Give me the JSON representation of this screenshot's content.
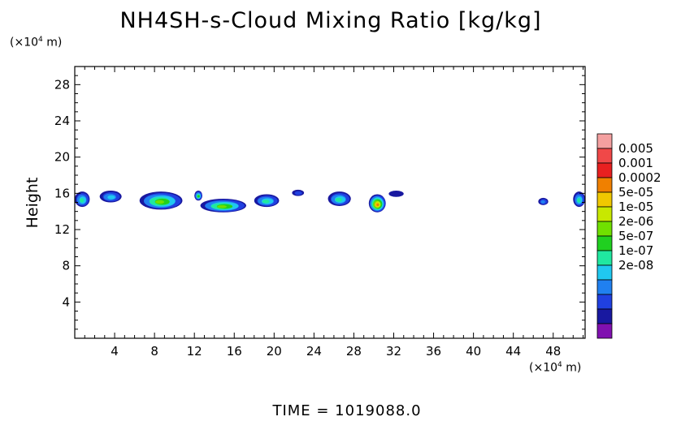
{
  "title": "NH4SH-s-Cloud Mixing Ratio [kg/kg]",
  "y_unit": {
    "prefix": "(×10",
    "exp": "4",
    "suffix": " m)"
  },
  "x_unit": {
    "prefix": "(×10",
    "exp": "4",
    "suffix": " m)"
  },
  "time_label": "TIME  =  1019088.0",
  "chart_data": {
    "type": "heatmap",
    "title": "NH4SH-s-Cloud Mixing Ratio [kg/kg]",
    "xlabel": "",
    "ylabel": "Height",
    "xlim": [
      0,
      51.2
    ],
    "ylim": [
      0,
      30
    ],
    "x_ticks": [
      4,
      8,
      12,
      16,
      20,
      24,
      28,
      32,
      36,
      40,
      44,
      48
    ],
    "y_ticks": [
      4,
      8,
      12,
      16,
      20,
      24,
      28
    ],
    "colorbar": {
      "labels": [
        "0.005",
        "0.001",
        "0.0002",
        "5e-05",
        "1e-05",
        "2e-06",
        "5e-07",
        "1e-07",
        "2e-08"
      ],
      "colors": [
        "#f4a0a0",
        "#f04848",
        "#e82020",
        "#f08000",
        "#f0c800",
        "#c8e800",
        "#70e000",
        "#20d020",
        "#20e8a0",
        "#20c8f0",
        "#2080f0",
        "#2040e0",
        "#1818a0",
        "#8010b0"
      ]
    },
    "cloud_layer": {
      "y_center": 15.2,
      "y_range": [
        13.8,
        16.5
      ]
    },
    "patches": [
      {
        "x": [
          0,
          1.5
        ],
        "y": [
          14.5,
          16.2
        ],
        "peak_level": 8
      },
      {
        "x": [
          2.5,
          4.7
        ],
        "y": [
          15.0,
          16.3
        ],
        "peak_level": 9
      },
      {
        "x": [
          6.5,
          10.8
        ],
        "y": [
          14.2,
          16.2
        ],
        "peak_level": 6
      },
      {
        "x": [
          12.0,
          12.8
        ],
        "y": [
          15.2,
          16.3
        ],
        "peak_level": 7
      },
      {
        "x": [
          12.6,
          17.2
        ],
        "y": [
          13.9,
          15.4
        ],
        "peak_level": 6
      },
      {
        "x": [
          18.0,
          20.5
        ],
        "y": [
          14.5,
          15.9
        ],
        "peak_level": 8
      },
      {
        "x": [
          21.8,
          23.0
        ],
        "y": [
          15.7,
          16.4
        ],
        "peak_level": 11
      },
      {
        "x": [
          25.4,
          27.7
        ],
        "y": [
          14.6,
          16.2
        ],
        "peak_level": 8
      },
      {
        "x": [
          29.5,
          31.2
        ],
        "y": [
          13.9,
          15.9
        ],
        "peak_level": 3
      },
      {
        "x": [
          31.5,
          33.0
        ],
        "y": [
          15.6,
          16.3
        ],
        "peak_level": 12
      },
      {
        "x": [
          46.5,
          47.5
        ],
        "y": [
          14.7,
          15.5
        ],
        "peak_level": 10
      },
      {
        "x": [
          50.0,
          51.2
        ],
        "y": [
          14.5,
          16.2
        ],
        "peak_level": 8
      }
    ]
  }
}
